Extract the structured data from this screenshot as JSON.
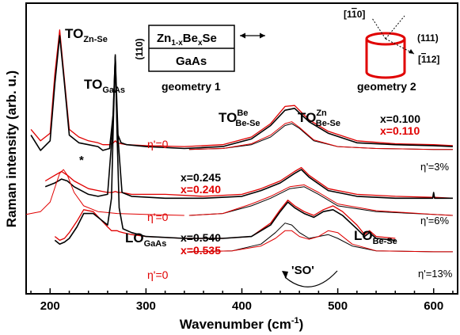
{
  "chart_data": {
    "type": "line",
    "xlabel": "Wavenumber (cm",
    "xlabel_sup": "-1",
    "xlabel_close": ")",
    "ylabel": "Raman intensity (arb. u.)",
    "xlim": [
      175,
      625
    ],
    "x_ticks": [
      200,
      300,
      400,
      500,
      600
    ],
    "y_scale": "arbitrary, vertically offset spectra",
    "grid": false,
    "colors": {
      "black": "#000000",
      "red": "#e00000"
    },
    "annotations": {
      "to_znse": {
        "main": "TO",
        "sub": "Zn-Se"
      },
      "to_gaas": {
        "main": "TO",
        "sub": "GaAs"
      },
      "to_bese_be": {
        "main": "TO",
        "sub": "Be-Se",
        "sup": "Be"
      },
      "to_bese_zn": {
        "main": "TO",
        "sub": "Be-Se",
        "sup": "Zn"
      },
      "lo_gaas": {
        "main": "LO",
        "sub": "GaAs"
      },
      "lo_bese": {
        "main": "LO",
        "sub": "Be-Se"
      },
      "so": "'SO'",
      "star": "*"
    },
    "inset1": {
      "orientation": "(110)",
      "layer_main": "Zn",
      "layer_sub1": "1-x",
      "layer_mid": "Be",
      "layer_sub2": "x",
      "layer_end": "Se",
      "substrate": "GaAs",
      "caption": "geometry 1"
    },
    "inset2": {
      "dir1": "[1",
      "dir1_bar": "1",
      "dir1_end": "0]",
      "dir2": "(111)",
      "dir3_start": "[",
      "dir3_bar": "1",
      "dir3_end": "12]",
      "caption": "geometry 2"
    },
    "series": [
      {
        "x_black": "0.100",
        "x_red": "0.110",
        "eta_red": "η'=0",
        "eta_black": "η'=3%",
        "x": [
          180,
          190,
          200,
          205,
          210,
          215,
          220,
          230,
          240,
          250,
          255,
          262,
          266,
          268,
          270,
          274,
          280,
          300,
          340,
          380,
          410,
          430,
          445,
          455,
          470,
          490,
          520,
          560,
          600,
          620
        ],
        "black": [
          8.3,
          7.5,
          8.0,
          11.0,
          13.5,
          11.0,
          8.3,
          7.9,
          7.8,
          7.7,
          7.5,
          7.6,
          9.5,
          12.5,
          8.4,
          7.9,
          7.8,
          7.7,
          7.6,
          7.7,
          8.1,
          8.8,
          9.6,
          9.7,
          9.0,
          8.4,
          7.9,
          7.8,
          7.75,
          7.7
        ],
        "red": [
          8.6,
          8.0,
          8.4,
          11.5,
          13.8,
          11.2,
          8.6,
          8.2,
          8.0,
          7.9,
          7.8,
          7.8,
          7.9,
          8.0,
          7.9,
          7.85,
          7.8,
          7.75,
          7.7,
          7.8,
          8.2,
          8.9,
          9.8,
          9.85,
          9.1,
          8.5,
          8.0,
          7.85,
          7.8,
          7.75
        ],
        "fit_x": [
          345,
          380,
          410,
          430,
          445,
          452,
          460,
          475,
          500,
          540,
          600,
          620
        ],
        "fit_black": [
          7.55,
          7.6,
          7.8,
          8.2,
          8.8,
          8.9,
          8.65,
          8.0,
          7.7,
          7.6,
          7.55,
          7.55
        ],
        "fit_red": [
          7.55,
          7.6,
          7.85,
          8.3,
          8.9,
          9.0,
          8.7,
          8.05,
          7.7,
          7.6,
          7.55,
          7.55
        ]
      },
      {
        "x_black": "0.245",
        "x_red": "0.240",
        "eta_red": "η'=0",
        "eta_black": "η'=6%",
        "x": [
          195,
          205,
          212,
          218,
          225,
          240,
          250,
          260,
          265,
          268,
          271,
          275,
          285,
          320,
          360,
          400,
          420,
          440,
          455,
          462,
          470,
          490,
          520,
          560,
          599,
          600,
          601,
          620
        ],
        "black": [
          5.6,
          5.8,
          6.0,
          5.9,
          5.6,
          5.2,
          5.1,
          5.2,
          8.5,
          12.4,
          8.0,
          5.3,
          5.1,
          5.0,
          5.0,
          5.1,
          5.4,
          5.8,
          6.3,
          6.5,
          6.1,
          5.4,
          5.1,
          5.0,
          5.0,
          5.3,
          5.0,
          5.0
        ],
        "red": [
          5.9,
          6.2,
          6.4,
          6.2,
          5.9,
          5.5,
          5.4,
          5.3,
          5.3,
          5.35,
          5.3,
          5.3,
          5.2,
          5.2,
          5.1,
          5.2,
          5.5,
          5.9,
          6.4,
          6.6,
          6.2,
          5.5,
          5.2,
          5.1,
          5.05,
          5.05,
          5.05,
          5.0
        ],
        "lorentz_x": [
          175,
          190,
          200,
          206,
          210,
          214,
          218,
          225,
          235,
          250,
          270,
          300,
          340
        ],
        "lorentz_red": [
          4.15,
          4.3,
          4.8,
          5.7,
          6.3,
          6.5,
          6.2,
          5.3,
          4.6,
          4.3,
          4.2,
          4.15,
          4.1
        ],
        "fit_x": [
          345,
          380,
          410,
          430,
          450,
          465,
          480,
          500,
          540,
          600,
          620
        ],
        "fit_black": [
          4.1,
          4.2,
          4.6,
          5.0,
          5.5,
          5.6,
          5.2,
          4.6,
          4.3,
          4.15,
          4.1
        ],
        "fit_red": [
          4.1,
          4.2,
          4.7,
          5.1,
          5.6,
          5.7,
          5.3,
          4.7,
          4.35,
          4.15,
          4.1
        ]
      },
      {
        "x_black": "0.540",
        "x_red": "0.535",
        "eta_red": "η'=0",
        "eta_black": "η'=13%",
        "x": [
          205,
          210,
          215,
          220,
          228,
          235,
          245,
          260,
          264,
          266,
          268,
          270,
          272,
          276,
          285,
          300,
          340,
          380,
          410,
          430,
          440,
          448,
          455,
          465,
          475,
          485,
          495,
          505,
          520,
          528,
          533,
          540,
          560
        ],
        "black": [
          2.8,
          2.6,
          2.7,
          2.9,
          3.5,
          4.2,
          4.2,
          3.6,
          5.0,
          9.0,
          12.4,
          8.0,
          4.5,
          3.4,
          3.2,
          3.0,
          2.9,
          2.9,
          3.0,
          3.6,
          4.3,
          4.8,
          4.5,
          4.2,
          4.0,
          4.3,
          4.4,
          4.1,
          3.4,
          3.0,
          3.2,
          2.9,
          2.8
        ],
        "red": [
          3.0,
          2.8,
          2.9,
          3.2,
          3.8,
          4.4,
          4.3,
          3.5,
          3.3,
          3.3,
          3.3,
          3.3,
          3.25,
          3.2,
          3.1,
          3.0,
          2.9,
          2.9,
          3.0,
          3.7,
          4.4,
          4.9,
          4.6,
          4.3,
          4.1,
          4.4,
          4.6,
          4.3,
          3.6,
          3.1,
          3.3,
          3.0,
          2.9
        ],
        "fit_x": [
          345,
          390,
          420,
          435,
          445,
          452,
          460,
          470,
          480,
          490,
          500,
          515,
          540,
          600,
          620
        ],
        "fit_black": [
          2.2,
          2.25,
          2.6,
          3.2,
          3.7,
          3.6,
          3.2,
          2.9,
          3.0,
          3.1,
          2.9,
          2.5,
          2.25,
          2.2,
          2.2
        ],
        "fit_red": [
          2.2,
          2.25,
          2.5,
          2.9,
          3.3,
          3.3,
          3.0,
          2.85,
          3.0,
          3.3,
          3.2,
          2.6,
          2.25,
          2.2,
          2.2
        ]
      }
    ]
  }
}
